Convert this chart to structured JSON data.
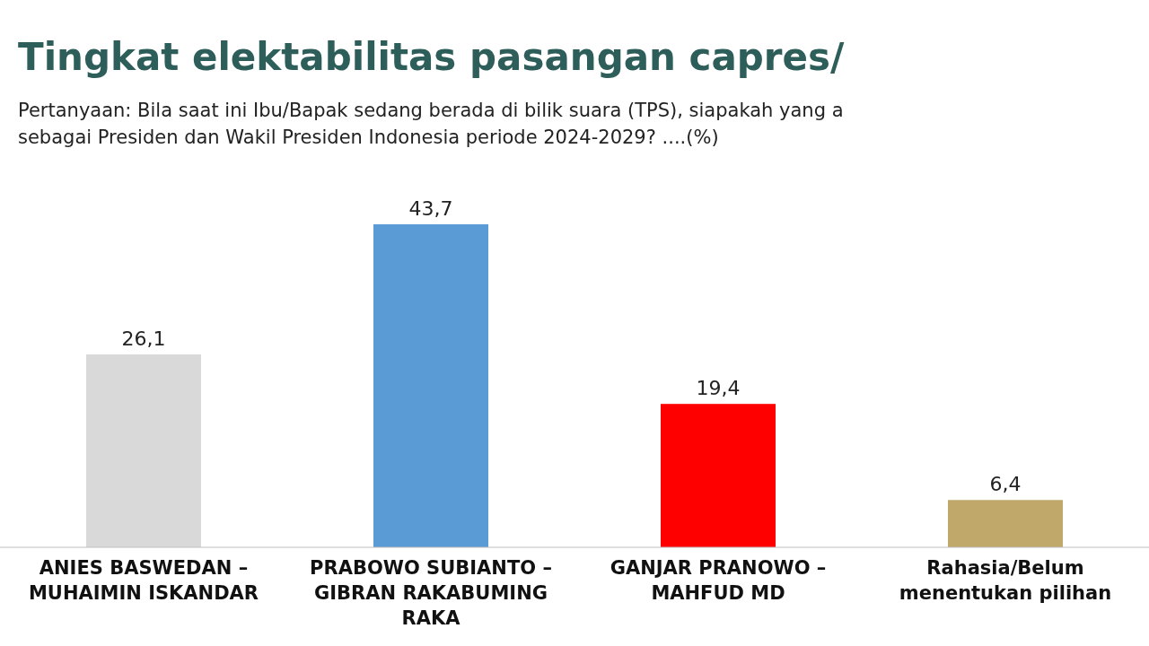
{
  "chart_data": {
    "type": "bar",
    "title": "Tingkat elektabilitas pasangan capres/",
    "subtitle": "Pertanyaan: Bila saat ini Ibu/Bapak sedang berada di bilik suara (TPS), siapakah yang a\nsebagai Presiden dan Wakil Presiden Indonesia periode 2024-2029? ....(%)",
    "categories": [
      "ANIES BASWEDAN – MUHAIMIN ISKANDAR",
      "PRABOWO SUBIANTO – GIBRAN RAKABUMING RAKA",
      "GANJAR PRANOWO – MAHFUD MD",
      "Rahasia/Belum menentukan pilihan"
    ],
    "values": [
      26.1,
      43.7,
      19.4,
      6.4
    ],
    "colors": [
      "#d9d9d9",
      "#5b9bd5",
      "#ff0000",
      "#c0a86a"
    ],
    "value_labels": [
      "26,1",
      "43,7",
      "19,4",
      "6,4"
    ]
  }
}
